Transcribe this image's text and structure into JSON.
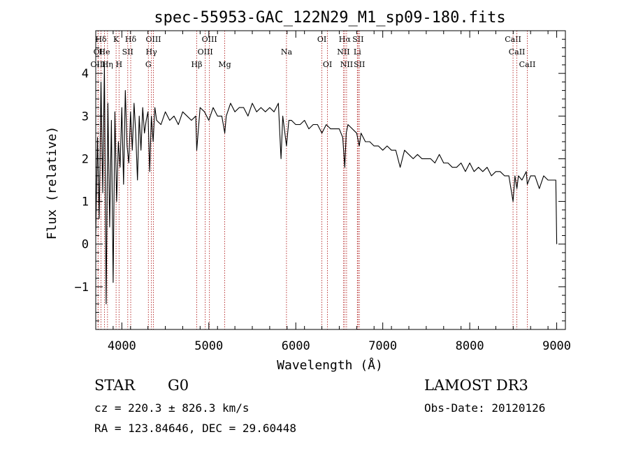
{
  "chart_data": {
    "type": "line",
    "title": "spec-55953-GAC_122N29_M1_sp09-180.fits",
    "xlabel": "Wavelength (Å)",
    "ylabel": "Flux (relative)",
    "xlim": [
      3700,
      9100
    ],
    "ylim": [
      -2.0,
      5.0
    ],
    "xticks": [
      4000,
      5000,
      6000,
      7000,
      8000,
      9000
    ],
    "xtick_labels": [
      "4000",
      "5000",
      "6000",
      "7000",
      "8000",
      "9000"
    ],
    "yticks": [
      -1,
      0,
      1,
      2,
      3,
      4
    ],
    "ytick_labels": [
      "−1",
      "0",
      "1",
      "2",
      "3",
      "4"
    ],
    "line_color": "#000000",
    "marker_color": "#b22222",
    "series": [
      {
        "name": "flux",
        "x": [
          3700,
          3720,
          3740,
          3760,
          3780,
          3800,
          3820,
          3840,
          3860,
          3880,
          3900,
          3920,
          3940,
          3960,
          3980,
          4000,
          4020,
          4040,
          4060,
          4080,
          4100,
          4120,
          4140,
          4160,
          4180,
          4200,
          4220,
          4240,
          4260,
          4280,
          4300,
          4320,
          4340,
          4360,
          4380,
          4400,
          4450,
          4500,
          4550,
          4600,
          4650,
          4700,
          4750,
          4800,
          4850,
          4861,
          4900,
          4950,
          5000,
          5050,
          5100,
          5150,
          5183,
          5200,
          5250,
          5300,
          5350,
          5400,
          5450,
          5500,
          5550,
          5600,
          5650,
          5700,
          5750,
          5800,
          5830,
          5850,
          5893,
          5920,
          5950,
          6000,
          6050,
          6100,
          6150,
          6200,
          6250,
          6300,
          6350,
          6400,
          6450,
          6500,
          6540,
          6563,
          6580,
          6600,
          6650,
          6700,
          6730,
          6750,
          6800,
          6850,
          6900,
          6950,
          7000,
          7050,
          7100,
          7150,
          7200,
          7250,
          7300,
          7350,
          7400,
          7450,
          7500,
          7550,
          7600,
          7650,
          7700,
          7750,
          7800,
          7850,
          7900,
          7950,
          8000,
          8050,
          8100,
          8150,
          8200,
          8250,
          8300,
          8350,
          8400,
          8450,
          8498,
          8520,
          8542,
          8560,
          8600,
          8650,
          8662,
          8700,
          8750,
          8800,
          8850,
          8900,
          8950,
          8990,
          9000
        ],
        "y": [
          0.2,
          2.5,
          0.6,
          3.8,
          1.2,
          4.2,
          -1.4,
          3.3,
          0.4,
          2.9,
          -0.9,
          3.1,
          1.0,
          2.4,
          1.8,
          3.2,
          1.4,
          3.6,
          2.3,
          1.9,
          3.1,
          2.2,
          3.3,
          2.6,
          1.5,
          3.0,
          2.2,
          3.2,
          2.6,
          2.9,
          3.1,
          1.7,
          3.0,
          2.4,
          3.2,
          2.9,
          2.8,
          3.1,
          2.9,
          3.0,
          2.8,
          3.1,
          3.0,
          2.9,
          3.0,
          2.2,
          3.2,
          3.1,
          2.9,
          3.2,
          3.0,
          3.0,
          2.6,
          3.0,
          3.3,
          3.1,
          3.2,
          3.2,
          3.0,
          3.3,
          3.1,
          3.2,
          3.1,
          3.2,
          3.1,
          3.3,
          2.0,
          3.0,
          2.3,
          2.9,
          2.9,
          2.8,
          2.8,
          2.9,
          2.7,
          2.8,
          2.8,
          2.6,
          2.8,
          2.7,
          2.7,
          2.7,
          2.5,
          1.8,
          2.6,
          2.8,
          2.7,
          2.6,
          2.3,
          2.6,
          2.4,
          2.4,
          2.3,
          2.3,
          2.2,
          2.3,
          2.2,
          2.2,
          1.8,
          2.2,
          2.1,
          2.0,
          2.1,
          2.0,
          2.0,
          2.0,
          1.9,
          2.1,
          1.9,
          1.9,
          1.8,
          1.8,
          1.9,
          1.7,
          1.9,
          1.7,
          1.8,
          1.7,
          1.8,
          1.6,
          1.7,
          1.7,
          1.6,
          1.6,
          1.0,
          1.6,
          1.3,
          1.6,
          1.5,
          1.7,
          1.4,
          1.6,
          1.6,
          1.3,
          1.6,
          1.5,
          1.5,
          1.5,
          0.0
        ]
      }
    ],
    "line_markers": [
      {
        "label": "Hδ",
        "wavelength": 3760,
        "row": 0
      },
      {
        "label": "K",
        "wavelength": 3934,
        "row": 0
      },
      {
        "label": "Hδ",
        "wavelength": 4102,
        "row": 0
      },
      {
        "label": "OIII",
        "wavelength": 4363,
        "row": 0
      },
      {
        "label": "OIII",
        "wavelength": 5007,
        "row": 0
      },
      {
        "label": "OI",
        "wavelength": 6300,
        "row": 0
      },
      {
        "label": "Hα",
        "wavelength": 6563,
        "row": 0
      },
      {
        "label": "SII",
        "wavelength": 6716,
        "row": 0
      },
      {
        "label": "CaII",
        "wavelength": 8498,
        "row": 0
      },
      {
        "label": "OI",
        "wavelength": 3727,
        "row": 1
      },
      {
        "label": "He",
        "wavelength": 3800,
        "row": 1
      },
      {
        "label": "SII",
        "wavelength": 4068,
        "row": 1
      },
      {
        "label": "Hγ",
        "wavelength": 4340,
        "row": 1
      },
      {
        "label": "OIII",
        "wavelength": 4959,
        "row": 1
      },
      {
        "label": "Na",
        "wavelength": 5893,
        "row": 1
      },
      {
        "label": "NII",
        "wavelength": 6548,
        "row": 1
      },
      {
        "label": "Li",
        "wavelength": 6708,
        "row": 1
      },
      {
        "label": "CaII",
        "wavelength": 8542,
        "row": 1
      },
      {
        "label": "OIII",
        "wavelength": 3727,
        "row": 2
      },
      {
        "label": "Hη",
        "wavelength": 3835,
        "row": 2
      },
      {
        "label": "H",
        "wavelength": 3968,
        "row": 2
      },
      {
        "label": "G",
        "wavelength": 4305,
        "row": 2
      },
      {
        "label": "Hβ",
        "wavelength": 4861,
        "row": 2
      },
      {
        "label": "Mg",
        "wavelength": 5183,
        "row": 2
      },
      {
        "label": "OI",
        "wavelength": 6364,
        "row": 2
      },
      {
        "label": "NII",
        "wavelength": 6584,
        "row": 2
      },
      {
        "label": "SII",
        "wavelength": 6731,
        "row": 2
      },
      {
        "label": "CaII",
        "wavelength": 8662,
        "row": 2
      }
    ]
  },
  "info": {
    "object_class": "STAR",
    "subclass": "G0",
    "survey": "LAMOST DR3",
    "cz": "cz = 220.3 ± 826.3 km/s",
    "obs_date": "Obs-Date: 20120126",
    "coords": "RA = 123.84646, DEC =  29.60448"
  }
}
